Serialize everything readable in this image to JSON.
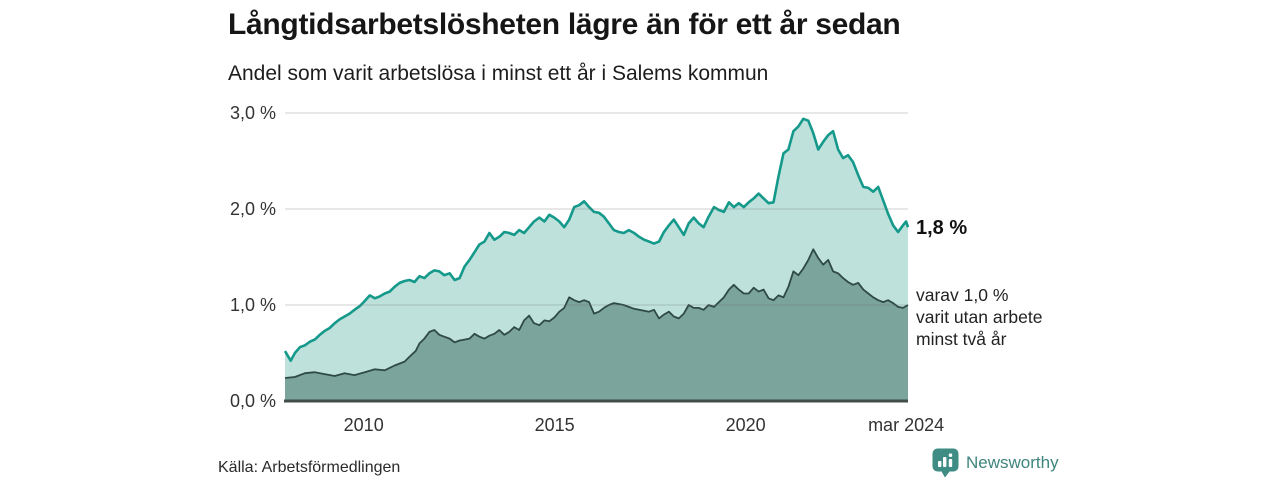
{
  "header": {
    "title": "Långtidsarbetslösheten lägre än för ett år sedan",
    "subtitle": "Andel som varit arbetslösa i minst ett år i Salems kommun"
  },
  "footer": {
    "source": "Källa: Arbetsförmedlingen",
    "brand": "Newsworthy"
  },
  "colors": {
    "line_1yr": "#14998a",
    "fill_1yr": "#b9ded9",
    "line_2yr": "#2f4a45",
    "fill_2yr": "#7ba49c",
    "gridline": "#6e6e6e",
    "zero_axis": "#414e4a",
    "annotation_bold": "#111111",
    "annotation_text": "#222222",
    "tick_text": "#333333",
    "brand_teal": "#3e857d"
  },
  "chart_data": {
    "type": "area",
    "title": "Långtidsarbetslösheten lägre än för ett år sedan",
    "subtitle": "Andel som varit arbetslösa i minst ett år i Salems kommun",
    "grid": true,
    "legend_position": "none",
    "xlim": [
      2007.94,
      2024.25
    ],
    "ylim": [
      0,
      3
    ],
    "y_ticks": [
      {
        "value": 3.0,
        "label": "3,0 %"
      },
      {
        "value": 2.0,
        "label": "2,0 %"
      },
      {
        "value": 1.0,
        "label": "1,0 %"
      },
      {
        "value": 0.0,
        "label": "0,0 %"
      }
    ],
    "x_ticks": [
      {
        "year": 2010,
        "label": "2010"
      },
      {
        "year": 2015,
        "label": "2015"
      },
      {
        "year": 2020,
        "label": "2020"
      },
      {
        "year": 2024.2,
        "label": "mar 2024"
      }
    ],
    "series": [
      {
        "name": "Andel som varit arbetslösa i minst ett år",
        "end_label": "1,8 %",
        "end_value": 1.8,
        "points": [
          [
            2007.94,
            0.52
          ],
          [
            2008.09,
            0.42
          ],
          [
            2008.2,
            0.5
          ],
          [
            2008.33,
            0.56
          ],
          [
            2008.46,
            0.58
          ],
          [
            2008.6,
            0.62
          ],
          [
            2008.72,
            0.64
          ],
          [
            2008.85,
            0.69
          ],
          [
            2008.98,
            0.73
          ],
          [
            2009.11,
            0.76
          ],
          [
            2009.24,
            0.81
          ],
          [
            2009.37,
            0.85
          ],
          [
            2009.5,
            0.88
          ],
          [
            2009.63,
            0.91
          ],
          [
            2009.76,
            0.95
          ],
          [
            2009.9,
            0.99
          ],
          [
            2010.0,
            1.03
          ],
          [
            2010.16,
            1.1
          ],
          [
            2010.29,
            1.07
          ],
          [
            2010.42,
            1.09
          ],
          [
            2010.55,
            1.12
          ],
          [
            2010.68,
            1.14
          ],
          [
            2010.81,
            1.19
          ],
          [
            2010.94,
            1.23
          ],
          [
            2011.07,
            1.25
          ],
          [
            2011.2,
            1.26
          ],
          [
            2011.33,
            1.24
          ],
          [
            2011.46,
            1.3
          ],
          [
            2011.59,
            1.28
          ],
          [
            2011.72,
            1.33
          ],
          [
            2011.85,
            1.36
          ],
          [
            2011.98,
            1.35
          ],
          [
            2012.11,
            1.31
          ],
          [
            2012.25,
            1.33
          ],
          [
            2012.38,
            1.26
          ],
          [
            2012.51,
            1.28
          ],
          [
            2012.64,
            1.4
          ],
          [
            2012.77,
            1.47
          ],
          [
            2012.9,
            1.55
          ],
          [
            2013.03,
            1.63
          ],
          [
            2013.16,
            1.66
          ],
          [
            2013.29,
            1.75
          ],
          [
            2013.42,
            1.68
          ],
          [
            2013.55,
            1.71
          ],
          [
            2013.68,
            1.76
          ],
          [
            2013.81,
            1.75
          ],
          [
            2013.94,
            1.73
          ],
          [
            2014.07,
            1.78
          ],
          [
            2014.2,
            1.75
          ],
          [
            2014.33,
            1.81
          ],
          [
            2014.46,
            1.87
          ],
          [
            2014.6,
            1.91
          ],
          [
            2014.73,
            1.87
          ],
          [
            2014.86,
            1.94
          ],
          [
            2014.99,
            1.91
          ],
          [
            2015.12,
            1.87
          ],
          [
            2015.25,
            1.81
          ],
          [
            2015.38,
            1.89
          ],
          [
            2015.51,
            2.02
          ],
          [
            2015.64,
            2.04
          ],
          [
            2015.77,
            2.08
          ],
          [
            2015.9,
            2.02
          ],
          [
            2016.03,
            1.97
          ],
          [
            2016.16,
            1.96
          ],
          [
            2016.29,
            1.92
          ],
          [
            2016.42,
            1.85
          ],
          [
            2016.55,
            1.78
          ],
          [
            2016.68,
            1.76
          ],
          [
            2016.81,
            1.75
          ],
          [
            2016.94,
            1.78
          ],
          [
            2017.08,
            1.75
          ],
          [
            2017.21,
            1.71
          ],
          [
            2017.34,
            1.68
          ],
          [
            2017.47,
            1.66
          ],
          [
            2017.6,
            1.64
          ],
          [
            2017.73,
            1.66
          ],
          [
            2017.86,
            1.76
          ],
          [
            2017.99,
            1.83
          ],
          [
            2018.12,
            1.89
          ],
          [
            2018.25,
            1.81
          ],
          [
            2018.38,
            1.73
          ],
          [
            2018.51,
            1.85
          ],
          [
            2018.64,
            1.91
          ],
          [
            2018.77,
            1.85
          ],
          [
            2018.9,
            1.81
          ],
          [
            2019.03,
            1.92
          ],
          [
            2019.17,
            2.02
          ],
          [
            2019.3,
            1.99
          ],
          [
            2019.43,
            1.97
          ],
          [
            2019.56,
            2.07
          ],
          [
            2019.69,
            2.02
          ],
          [
            2019.82,
            2.06
          ],
          [
            2019.95,
            2.02
          ],
          [
            2020.08,
            2.07
          ],
          [
            2020.21,
            2.11
          ],
          [
            2020.34,
            2.16
          ],
          [
            2020.47,
            2.11
          ],
          [
            2020.6,
            2.06
          ],
          [
            2020.73,
            2.07
          ],
          [
            2020.86,
            2.34
          ],
          [
            2020.99,
            2.58
          ],
          [
            2021.12,
            2.62
          ],
          [
            2021.25,
            2.81
          ],
          [
            2021.38,
            2.86
          ],
          [
            2021.51,
            2.94
          ],
          [
            2021.64,
            2.92
          ],
          [
            2021.77,
            2.79
          ],
          [
            2021.9,
            2.62
          ],
          [
            2022.03,
            2.7
          ],
          [
            2022.16,
            2.77
          ],
          [
            2022.29,
            2.81
          ],
          [
            2022.42,
            2.62
          ],
          [
            2022.55,
            2.53
          ],
          [
            2022.68,
            2.56
          ],
          [
            2022.81,
            2.49
          ],
          [
            2022.95,
            2.35
          ],
          [
            2023.08,
            2.23
          ],
          [
            2023.21,
            2.22
          ],
          [
            2023.34,
            2.18
          ],
          [
            2023.47,
            2.23
          ],
          [
            2023.6,
            2.09
          ],
          [
            2023.73,
            1.95
          ],
          [
            2023.86,
            1.83
          ],
          [
            2023.99,
            1.76
          ],
          [
            2024.12,
            1.83
          ],
          [
            2024.2,
            1.87
          ],
          [
            2024.25,
            1.81
          ]
        ]
      },
      {
        "name": "varav varit utan arbete minst två år",
        "end_label_lines": [
          "varav 1,0 %",
          "varit utan arbete",
          "minst två år"
        ],
        "end_value": 1.0,
        "points": [
          [
            2007.94,
            0.24
          ],
          [
            2008.2,
            0.25
          ],
          [
            2008.46,
            0.29
          ],
          [
            2008.72,
            0.3
          ],
          [
            2008.98,
            0.28
          ],
          [
            2009.24,
            0.26
          ],
          [
            2009.5,
            0.29
          ],
          [
            2009.76,
            0.27
          ],
          [
            2010.03,
            0.3
          ],
          [
            2010.29,
            0.33
          ],
          [
            2010.55,
            0.32
          ],
          [
            2010.81,
            0.37
          ],
          [
            2011.07,
            0.41
          ],
          [
            2011.25,
            0.48
          ],
          [
            2011.36,
            0.52
          ],
          [
            2011.46,
            0.6
          ],
          [
            2011.59,
            0.65
          ],
          [
            2011.72,
            0.72
          ],
          [
            2011.85,
            0.74
          ],
          [
            2011.98,
            0.69
          ],
          [
            2012.11,
            0.67
          ],
          [
            2012.25,
            0.65
          ],
          [
            2012.38,
            0.61
          ],
          [
            2012.51,
            0.63
          ],
          [
            2012.64,
            0.64
          ],
          [
            2012.77,
            0.65
          ],
          [
            2012.9,
            0.7
          ],
          [
            2013.03,
            0.67
          ],
          [
            2013.16,
            0.65
          ],
          [
            2013.29,
            0.68
          ],
          [
            2013.42,
            0.7
          ],
          [
            2013.55,
            0.74
          ],
          [
            2013.68,
            0.69
          ],
          [
            2013.81,
            0.72
          ],
          [
            2013.94,
            0.77
          ],
          [
            2014.07,
            0.74
          ],
          [
            2014.2,
            0.84
          ],
          [
            2014.33,
            0.89
          ],
          [
            2014.46,
            0.81
          ],
          [
            2014.6,
            0.79
          ],
          [
            2014.73,
            0.84
          ],
          [
            2014.86,
            0.83
          ],
          [
            2014.99,
            0.87
          ],
          [
            2015.12,
            0.93
          ],
          [
            2015.25,
            0.97
          ],
          [
            2015.38,
            1.08
          ],
          [
            2015.51,
            1.05
          ],
          [
            2015.64,
            1.03
          ],
          [
            2015.77,
            1.05
          ],
          [
            2015.9,
            1.03
          ],
          [
            2016.03,
            0.91
          ],
          [
            2016.16,
            0.93
          ],
          [
            2016.29,
            0.97
          ],
          [
            2016.42,
            1.0
          ],
          [
            2016.55,
            1.02
          ],
          [
            2016.68,
            1.01
          ],
          [
            2016.81,
            1.0
          ],
          [
            2016.94,
            0.98
          ],
          [
            2017.08,
            0.96
          ],
          [
            2017.21,
            0.95
          ],
          [
            2017.34,
            0.94
          ],
          [
            2017.47,
            0.93
          ],
          [
            2017.6,
            0.95
          ],
          [
            2017.73,
            0.86
          ],
          [
            2017.86,
            0.9
          ],
          [
            2017.99,
            0.93
          ],
          [
            2018.12,
            0.88
          ],
          [
            2018.25,
            0.86
          ],
          [
            2018.38,
            0.91
          ],
          [
            2018.51,
            1.0
          ],
          [
            2018.64,
            0.97
          ],
          [
            2018.77,
            0.97
          ],
          [
            2018.9,
            0.95
          ],
          [
            2019.03,
            1.0
          ],
          [
            2019.17,
            0.98
          ],
          [
            2019.3,
            1.03
          ],
          [
            2019.43,
            1.08
          ],
          [
            2019.56,
            1.16
          ],
          [
            2019.69,
            1.21
          ],
          [
            2019.82,
            1.16
          ],
          [
            2019.95,
            1.12
          ],
          [
            2020.08,
            1.12
          ],
          [
            2020.21,
            1.18
          ],
          [
            2020.34,
            1.14
          ],
          [
            2020.47,
            1.16
          ],
          [
            2020.6,
            1.07
          ],
          [
            2020.73,
            1.05
          ],
          [
            2020.86,
            1.1
          ],
          [
            2020.99,
            1.08
          ],
          [
            2021.12,
            1.19
          ],
          [
            2021.25,
            1.35
          ],
          [
            2021.38,
            1.31
          ],
          [
            2021.51,
            1.38
          ],
          [
            2021.64,
            1.47
          ],
          [
            2021.77,
            1.58
          ],
          [
            2021.9,
            1.49
          ],
          [
            2022.03,
            1.42
          ],
          [
            2022.16,
            1.47
          ],
          [
            2022.29,
            1.35
          ],
          [
            2022.42,
            1.33
          ],
          [
            2022.55,
            1.28
          ],
          [
            2022.68,
            1.24
          ],
          [
            2022.81,
            1.21
          ],
          [
            2022.95,
            1.23
          ],
          [
            2023.08,
            1.16
          ],
          [
            2023.21,
            1.12
          ],
          [
            2023.34,
            1.08
          ],
          [
            2023.47,
            1.05
          ],
          [
            2023.6,
            1.03
          ],
          [
            2023.73,
            1.05
          ],
          [
            2023.86,
            1.02
          ],
          [
            2023.99,
            0.98
          ],
          [
            2024.12,
            0.97
          ],
          [
            2024.25,
            1.0
          ]
        ]
      }
    ]
  }
}
